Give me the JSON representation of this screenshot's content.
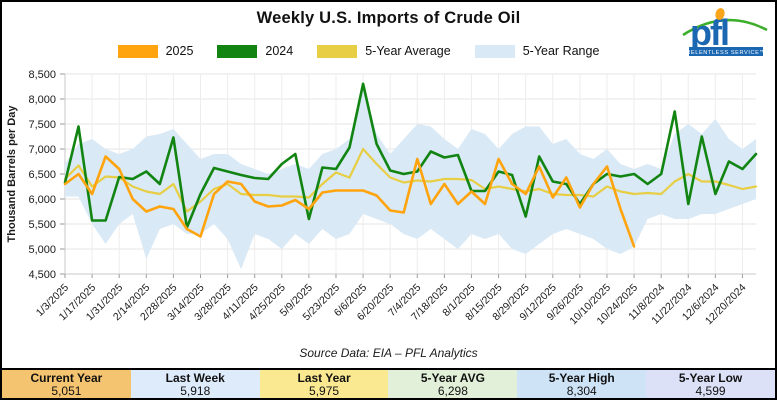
{
  "title": "Weekly U.S. Imports of Crude Oil",
  "logo": {
    "text": "pfl",
    "tagline": "RELENTLESS SERVICE™"
  },
  "legend": [
    {
      "label": "2025",
      "color": "#FFA40E"
    },
    {
      "label": "2024",
      "color": "#128412"
    },
    {
      "label": "5-Year Average",
      "color": "#E7CE44"
    },
    {
      "label": "5-Year Range",
      "color": "#D9E9F6"
    }
  ],
  "source_note": "Source Data: EIA – PFL Analytics",
  "stats": [
    {
      "label": "Current Year",
      "value": "5,051",
      "bg": "#F4C470"
    },
    {
      "label": "Last Week",
      "value": "5,918",
      "bg": "#DDEBFB"
    },
    {
      "label": "Last Year",
      "value": "5,975",
      "bg": "#FBE992"
    },
    {
      "label": "5-Year AVG",
      "value": "6,298",
      "bg": "#E2F0D9"
    },
    {
      "label": "5-Year High",
      "value": "8,304",
      "bg": "#CFE3F7"
    },
    {
      "label": "5-Year Low",
      "value": "4,599",
      "bg": "#DCE1F7"
    }
  ],
  "chart_data": {
    "type": "line",
    "title": "Weekly U.S. Imports of Crude Oil",
    "xlabel": "",
    "ylabel": "Thousand Barrels per Day",
    "ylim": [
      4500,
      8500
    ],
    "ytick_step": 500,
    "grid": true,
    "legend_position": "top",
    "weeks": 52,
    "x_tick_labels": [
      "1/3/2025",
      "1/17/2025",
      "1/31/2025",
      "2/14/2025",
      "2/28/2025",
      "3/14/2025",
      "3/28/2025",
      "4/11/2025",
      "4/25/2025",
      "5/9/2025",
      "5/23/2025",
      "6/6/2025",
      "6/20/2025",
      "7/4/2025",
      "7/18/2025",
      "8/1/2025",
      "8/15/2025",
      "8/29/2025",
      "9/12/2025",
      "9/26/2025",
      "10/10/2025",
      "10/24/2025",
      "11/8/2024",
      "11/22/2024",
      "12/6/2024",
      "12/20/2024"
    ],
    "series": [
      {
        "name": "2025",
        "color": "#FFA40E",
        "values": [
          6300,
          6500,
          6100,
          6850,
          6600,
          6000,
          5750,
          5850,
          5800,
          5400,
          5250,
          6100,
          6350,
          6300,
          5950,
          5850,
          5870,
          5980,
          5800,
          6130,
          6170,
          6170,
          6170,
          6070,
          5770,
          5730,
          6800,
          5900,
          6300,
          5900,
          6150,
          5900,
          6800,
          6300,
          6100,
          6650,
          6030,
          6430,
          5830,
          6300,
          6650,
          5800,
          5051
        ]
      },
      {
        "name": "2024",
        "color": "#128412",
        "values": [
          6330,
          7450,
          5570,
          5570,
          6440,
          6400,
          6550,
          6300,
          7230,
          5430,
          6100,
          6620,
          6550,
          6480,
          6420,
          6400,
          6700,
          6900,
          5600,
          6630,
          6600,
          7030,
          8304,
          7100,
          6570,
          6500,
          6550,
          6950,
          6830,
          6880,
          6160,
          6160,
          6550,
          6480,
          5650,
          6850,
          6350,
          6300,
          5900,
          6300,
          6500,
          6450,
          6500,
          6300,
          6500,
          7750,
          5900,
          7250,
          6100,
          6750,
          6600,
          6900
        ]
      },
      {
        "name": "5-Year Average",
        "color": "#E7CE44",
        "values": [
          6400,
          6670,
          6250,
          6450,
          6430,
          6250,
          6150,
          6100,
          6300,
          5750,
          5950,
          6200,
          6300,
          6100,
          6080,
          6080,
          6050,
          6050,
          6030,
          6300,
          6530,
          6430,
          7000,
          6700,
          6430,
          6330,
          6370,
          6350,
          6400,
          6400,
          6380,
          6200,
          6250,
          6200,
          6150,
          6200,
          6100,
          6080,
          6080,
          6050,
          6250,
          6150,
          6100,
          6120,
          6100,
          6350,
          6500,
          6350,
          6350,
          6280,
          6200,
          6250
        ]
      }
    ],
    "range": {
      "name": "5-Year Range",
      "color": "#D9E9F6",
      "max": [
        6700,
        7100,
        7200,
        7000,
        6900,
        7000,
        7250,
        7300,
        7400,
        7100,
        6800,
        6900,
        6900,
        6700,
        6600,
        6500,
        6600,
        6700,
        6600,
        6900,
        7000,
        7200,
        8304,
        7300,
        6900,
        7200,
        7500,
        7450,
        7200,
        7000,
        7400,
        7300,
        7000,
        7300,
        7450,
        7450,
        7100,
        7200,
        6900,
        6800,
        7000,
        6700,
        6600,
        6700,
        6600,
        7300,
        7500,
        7300,
        7600,
        7200,
        7000,
        7200
      ],
      "min": [
        6050,
        6050,
        5500,
        5100,
        5500,
        5700,
        4800,
        5400,
        5500,
        5300,
        5300,
        5500,
        5200,
        4599,
        5300,
        5200,
        5000,
        5300,
        5100,
        5400,
        5200,
        5300,
        5700,
        5600,
        5500,
        5300,
        5200,
        5400,
        5200,
        5000,
        5300,
        5200,
        5300,
        5000,
        4900,
        5100,
        5300,
        5400,
        5300,
        5200,
        5000,
        4900,
        5050,
        5600,
        5700,
        5600,
        5600,
        5700,
        5700,
        5800,
        5900,
        6000
      ]
    }
  }
}
